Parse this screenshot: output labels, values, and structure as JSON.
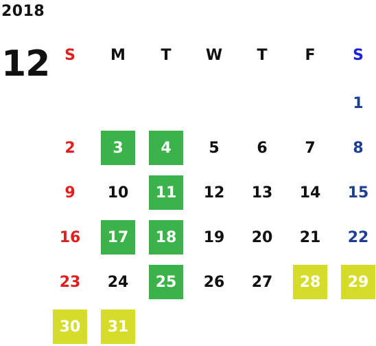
{
  "calendar": {
    "year": "2018",
    "month": "12",
    "weekday_headers": [
      "S",
      "M",
      "T",
      "W",
      "T",
      "F",
      "S"
    ],
    "weeks": [
      [
        null,
        null,
        null,
        null,
        null,
        null,
        {
          "day": "1"
        }
      ],
      [
        {
          "day": "2"
        },
        {
          "day": "3",
          "highlight": "green"
        },
        {
          "day": "4",
          "highlight": "green"
        },
        {
          "day": "5"
        },
        {
          "day": "6"
        },
        {
          "day": "7"
        },
        {
          "day": "8"
        }
      ],
      [
        {
          "day": "9"
        },
        {
          "day": "10"
        },
        {
          "day": "11",
          "highlight": "green"
        },
        {
          "day": "12"
        },
        {
          "day": "13"
        },
        {
          "day": "14"
        },
        {
          "day": "15"
        }
      ],
      [
        {
          "day": "16"
        },
        {
          "day": "17",
          "highlight": "green"
        },
        {
          "day": "18",
          "highlight": "green"
        },
        {
          "day": "19"
        },
        {
          "day": "20"
        },
        {
          "day": "21"
        },
        {
          "day": "22"
        }
      ],
      [
        {
          "day": "23"
        },
        {
          "day": "24"
        },
        {
          "day": "25",
          "highlight": "green"
        },
        {
          "day": "26"
        },
        {
          "day": "27"
        },
        {
          "day": "28",
          "highlight": "yellow"
        },
        {
          "day": "29",
          "highlight": "yellow"
        }
      ],
      [
        {
          "day": "30",
          "highlight": "yellow"
        },
        {
          "day": "31",
          "highlight": "yellow"
        },
        null,
        null,
        null,
        null,
        null
      ]
    ]
  },
  "colors": {
    "sunday": "#e02020",
    "saturday": "#1c3f94",
    "saturday_header": "#1a23d9",
    "weekday": "#111111",
    "highlight_green": "#3cb34a",
    "highlight_yellow": "#d6dc2a"
  }
}
